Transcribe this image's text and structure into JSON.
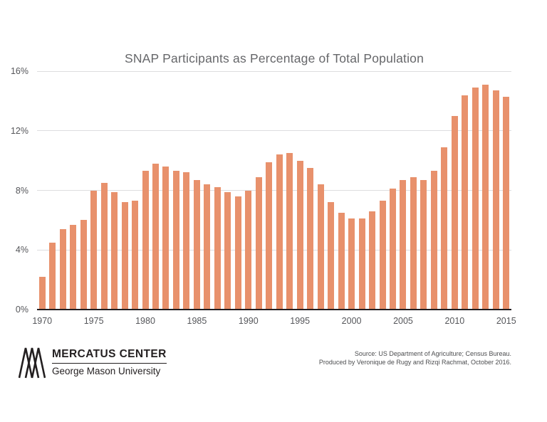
{
  "chart_data": {
    "type": "bar",
    "title": "SNAP Participants as Percentage of Total Population",
    "categories": [
      "1970",
      "1971",
      "1972",
      "1973",
      "1974",
      "1975",
      "1976",
      "1977",
      "1978",
      "1979",
      "1980",
      "1981",
      "1982",
      "1983",
      "1984",
      "1985",
      "1986",
      "1987",
      "1988",
      "1989",
      "1990",
      "1991",
      "1992",
      "1993",
      "1994",
      "1995",
      "1996",
      "1997",
      "1998",
      "1999",
      "2000",
      "2001",
      "2002",
      "2003",
      "2004",
      "2005",
      "2006",
      "2007",
      "2008",
      "2009",
      "2010",
      "2011",
      "2012",
      "2013",
      "2014",
      "2015"
    ],
    "values": [
      2.2,
      4.5,
      5.4,
      5.7,
      6.0,
      8.0,
      8.5,
      7.9,
      7.2,
      7.3,
      9.3,
      9.8,
      9.6,
      9.3,
      9.2,
      8.7,
      8.4,
      8.2,
      7.9,
      7.6,
      8.0,
      8.9,
      9.9,
      10.4,
      10.5,
      10.0,
      9.5,
      8.4,
      7.2,
      6.5,
      6.1,
      6.1,
      6.6,
      7.3,
      8.1,
      8.7,
      8.9,
      8.7,
      9.3,
      10.9,
      13.0,
      14.4,
      14.9,
      15.1,
      14.7,
      14.3
    ],
    "xlabel": "",
    "ylabel": "",
    "x_tick_labels": [
      "1970",
      "1975",
      "1980",
      "1985",
      "1990",
      "1995",
      "2000",
      "2005",
      "2010",
      "2015"
    ],
    "y_ticks": [
      0,
      4,
      8,
      12,
      16
    ],
    "y_tick_suffix": "%",
    "ylim": [
      0,
      16
    ],
    "bar_color": "#E8916C",
    "grid": "horizontal",
    "legend": "none"
  },
  "footer": {
    "logo_title": "MERCATUS CENTER",
    "logo_subtitle": "George Mason University",
    "source_line1": "Source: US Department of Agriculture; Census Bureau.",
    "source_line2": "Produced by Veronique de Rugy and Rizqi Rachmat, October 2016."
  }
}
